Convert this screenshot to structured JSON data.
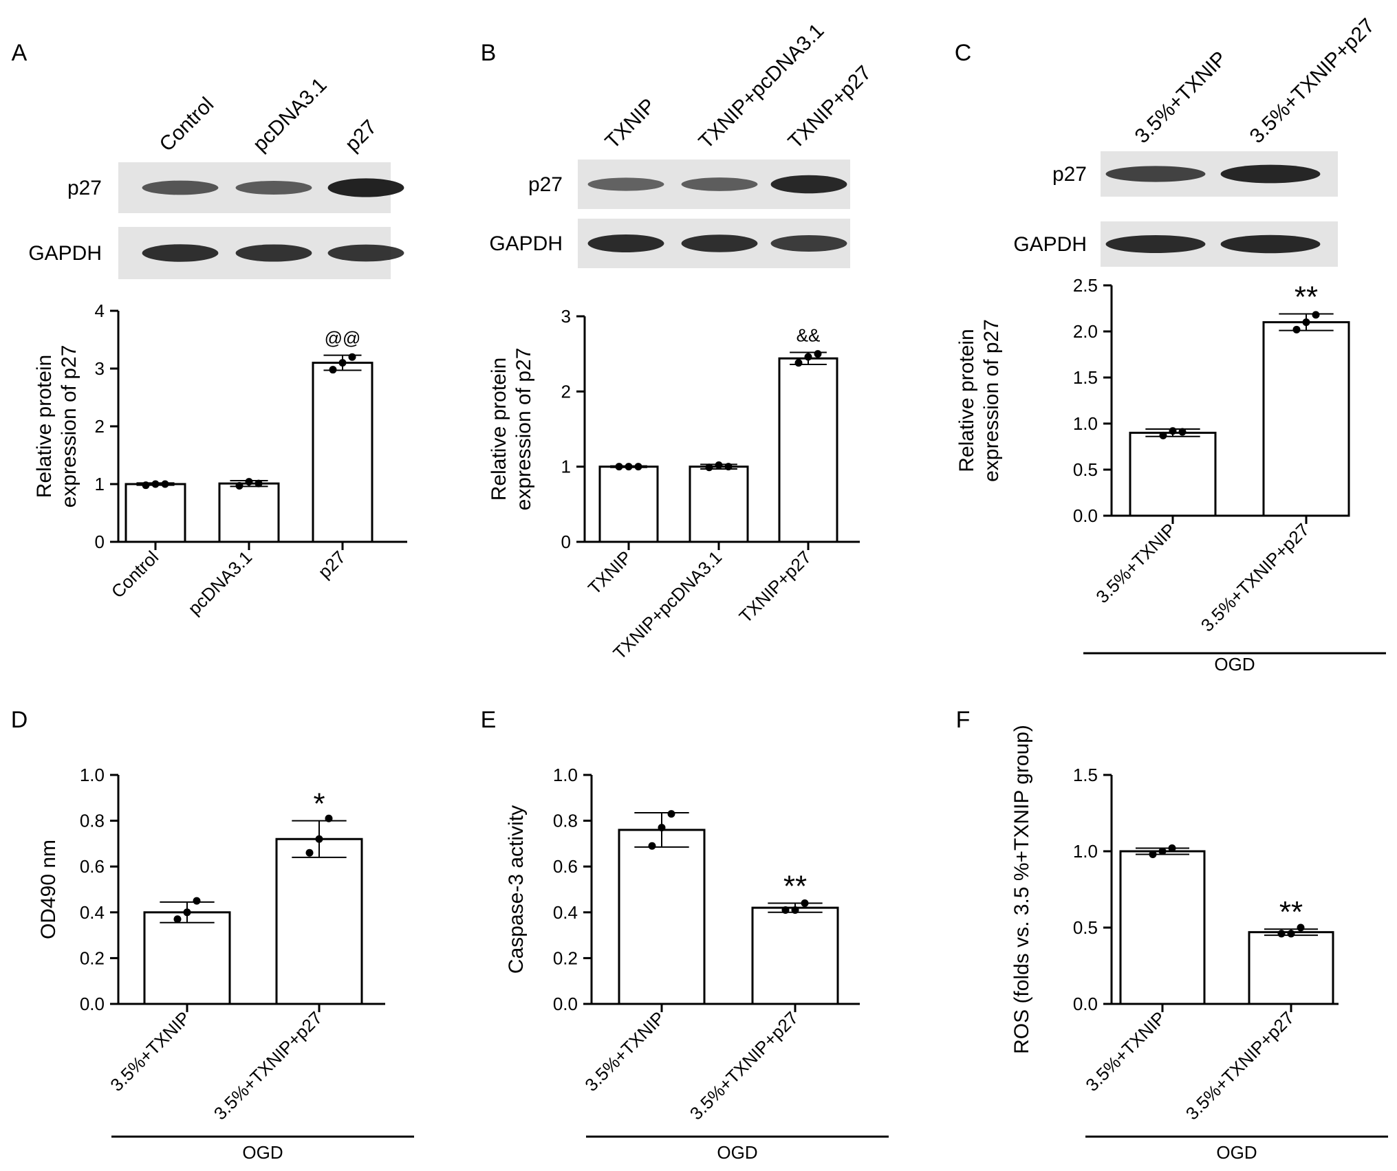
{
  "colors": {
    "bar_fill": "#ffffff",
    "stroke": "#000000",
    "blot_band": "#111111",
    "blot_bg": "#e4e4e4"
  },
  "panel_letters": [
    "A",
    "B",
    "C",
    "D",
    "E",
    "F"
  ],
  "blots": [
    {
      "lanes": [
        "Control",
        "pcDNA3.1",
        "p27"
      ],
      "rows": [
        {
          "label": "p27",
          "intensity": [
            0.55,
            0.5,
            0.95
          ]
        },
        {
          "label": "GAPDH",
          "intensity": [
            0.85,
            0.82,
            0.8
          ]
        }
      ]
    },
    {
      "lanes": [
        "TXNIP",
        "TXNIP+pcDNA3.1",
        "TXNIP+p27"
      ],
      "rows": [
        {
          "label": "p27",
          "intensity": [
            0.45,
            0.48,
            0.9
          ]
        },
        {
          "label": "GAPDH",
          "intensity": [
            0.88,
            0.85,
            0.75
          ]
        }
      ]
    },
    {
      "lanes": [
        "3.5%+TXNIP",
        "3.5%+TXNIP+p27"
      ],
      "rows": [
        {
          "label": "p27",
          "intensity": [
            0.7,
            0.92
          ]
        },
        {
          "label": "GAPDH",
          "intensity": [
            0.88,
            0.9
          ]
        }
      ]
    }
  ],
  "chart_data": [
    {
      "type": "bar",
      "ylabel": [
        "Relative protein",
        "expression of p27"
      ],
      "ylim": [
        0,
        4
      ],
      "yticks": [
        "0",
        "1",
        "2",
        "3",
        "4"
      ],
      "categories": [
        "Control",
        "pcDNA3.1",
        "p27"
      ],
      "values": [
        1.0,
        1.01,
        3.1
      ],
      "errors": [
        0.02,
        0.05,
        0.13
      ],
      "points": [
        [
          0.98,
          1.0,
          1.0
        ],
        [
          0.97,
          1.04,
          1.01
        ],
        [
          2.98,
          3.1,
          3.2
        ]
      ],
      "annotations": [
        "",
        "",
        "@@"
      ],
      "group_label": ""
    },
    {
      "type": "bar",
      "ylabel": [
        "Relative protein",
        "expression of p27"
      ],
      "ylim": [
        0,
        3
      ],
      "yticks": [
        "0",
        "1",
        "2",
        "3"
      ],
      "categories": [
        "TXNIP",
        "TXNIP+pcDNA3.1",
        "TXNIP+p27"
      ],
      "values": [
        1.0,
        1.0,
        2.44
      ],
      "errors": [
        0.01,
        0.03,
        0.08
      ],
      "points": [
        [
          1.0,
          1.0,
          1.0
        ],
        [
          0.99,
          1.02,
          1.0
        ],
        [
          2.38,
          2.46,
          2.5
        ]
      ],
      "annotations": [
        "",
        "",
        "&&"
      ],
      "group_label": ""
    },
    {
      "type": "bar",
      "ylabel": [
        "Relative protein",
        "expression of p27"
      ],
      "ylim": [
        0,
        2.5
      ],
      "yticks": [
        "0.0",
        "0.5",
        "1.0",
        "1.5",
        "2.0",
        "2.5"
      ],
      "categories": [
        "3.5%+TXNIP",
        "3.5%+TXNIP+p27"
      ],
      "values": [
        0.9,
        2.1
      ],
      "errors": [
        0.04,
        0.09
      ],
      "points": [
        [
          0.87,
          0.92,
          0.91
        ],
        [
          2.02,
          2.1,
          2.18
        ]
      ],
      "annotations": [
        "",
        "**"
      ],
      "group_label": "OGD"
    },
    {
      "type": "bar",
      "ylabel": [
        "OD490 nm"
      ],
      "ylim": [
        0,
        1.0
      ],
      "yticks": [
        "0.0",
        "0.2",
        "0.4",
        "0.6",
        "0.8",
        "1.0"
      ],
      "categories": [
        "3.5%+TXNIP",
        "3.5%+TXNIP+p27"
      ],
      "values": [
        0.4,
        0.72
      ],
      "errors": [
        0.045,
        0.08
      ],
      "points": [
        [
          0.37,
          0.4,
          0.45
        ],
        [
          0.66,
          0.72,
          0.81
        ]
      ],
      "annotations": [
        "",
        "*"
      ],
      "group_label": "OGD"
    },
    {
      "type": "bar",
      "ylabel": [
        "Caspase-3 activity"
      ],
      "ylim": [
        0,
        1.0
      ],
      "yticks": [
        "0.0",
        "0.2",
        "0.4",
        "0.6",
        "0.8",
        "1.0"
      ],
      "categories": [
        "3.5%+TXNIP",
        "3.5%+TXNIP+p27"
      ],
      "values": [
        0.76,
        0.42
      ],
      "errors": [
        0.075,
        0.02
      ],
      "points": [
        [
          0.69,
          0.77,
          0.83
        ],
        [
          0.41,
          0.41,
          0.44
        ]
      ],
      "annotations": [
        "",
        "**"
      ],
      "group_label": "OGD"
    },
    {
      "type": "bar",
      "ylabel": [
        "ROS (folds vs. 3.5 %+TXNIP group)"
      ],
      "ylim": [
        0,
        1.5
      ],
      "yticks": [
        "0.0",
        "0.5",
        "1.0",
        "1.5"
      ],
      "categories": [
        "3.5%+TXNIP",
        "3.5%+TXNIP+p27"
      ],
      "values": [
        1.0,
        0.47
      ],
      "errors": [
        0.02,
        0.02
      ],
      "points": [
        [
          0.98,
          1.0,
          1.02
        ],
        [
          0.46,
          0.46,
          0.5
        ]
      ],
      "annotations": [
        "",
        "**"
      ],
      "group_label": "OGD"
    }
  ]
}
